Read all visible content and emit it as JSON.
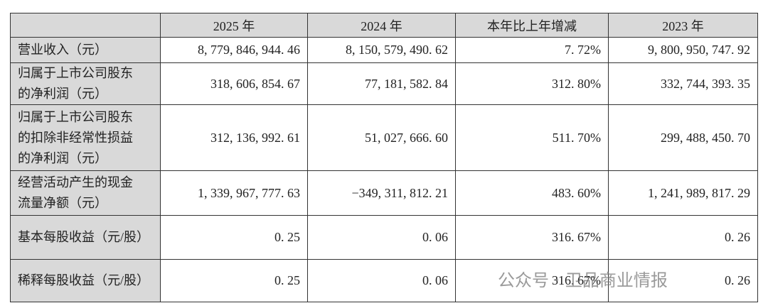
{
  "table": {
    "header": [
      "",
      "2025 年",
      "2024 年",
      "本年比上年增减",
      "2023 年"
    ],
    "rows": [
      [
        "营业收入（元）",
        "8, 779, 846, 944. 46",
        "8, 150, 579, 490. 62",
        "7. 72%",
        "9, 800, 950, 747. 92"
      ],
      [
        "归属于上市公司股东的净利润（元）",
        "318, 606, 854. 67",
        "77, 181, 582. 84",
        "312. 80%",
        "332, 744, 393. 35"
      ],
      [
        "归属于上市公司股东的扣除非经常性损益的净利润（元）",
        "312, 136, 992. 61",
        "51, 027, 666. 60",
        "511. 70%",
        "299, 488, 450. 70"
      ],
      [
        "经营活动产生的现金流量净额（元）",
        "1, 339, 967, 777. 63",
        "−349, 311, 812. 21",
        "483. 60%",
        "1, 241, 989, 817. 29"
      ],
      [
        "基本每股收益（元/股）",
        "0. 25",
        "0. 06",
        "316. 67%",
        "0. 26"
      ],
      [
        "稀释每股收益（元/股）",
        "0. 25",
        "0. 06",
        "316. 67%",
        "0. 26"
      ]
    ]
  },
  "watermark": "公众号 · 卫品商业情报"
}
